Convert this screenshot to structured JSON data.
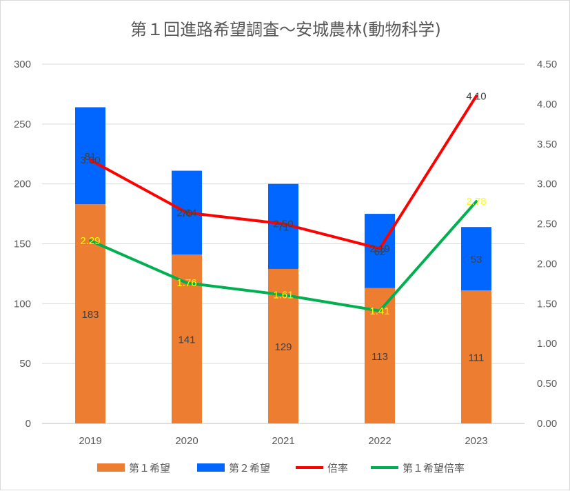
{
  "chart_data": {
    "type": "bar",
    "title": "第１回進路希望調査～安城農林(動物科学)",
    "categories": [
      "2019",
      "2020",
      "2021",
      "2022",
      "2023"
    ],
    "series": [
      {
        "name": "第１希望",
        "type": "bar",
        "axis": "left",
        "color": "#ED7D31",
        "values": [
          183,
          141,
          129,
          113,
          111
        ],
        "labels": [
          "183",
          "141",
          "129",
          "113",
          "111"
        ],
        "label_color": "#404040"
      },
      {
        "name": "第２希望",
        "type": "bar",
        "axis": "left",
        "color": "#0066FF",
        "values": [
          81,
          70,
          71,
          62,
          53
        ],
        "labels": [
          "81",
          "70",
          "71",
          "62",
          "53"
        ],
        "label_color": "#404040"
      },
      {
        "name": "倍率",
        "type": "line",
        "axis": "right",
        "color": "#FF0000",
        "values": [
          3.3,
          2.64,
          2.5,
          2.19,
          4.1
        ],
        "labels": [
          "3.30",
          "2.64",
          "2.50",
          "2.19",
          "4.10"
        ],
        "label_color": "#404040"
      },
      {
        "name": "第１希望倍率",
        "type": "line",
        "axis": "right",
        "color": "#00B050",
        "values": [
          2.29,
          1.76,
          1.61,
          1.41,
          2.78
        ],
        "labels": [
          "2.29",
          "1.76",
          "1.61",
          "1.41",
          "2.78"
        ],
        "label_color": "#FFFF00"
      }
    ],
    "y_left": {
      "min": 0,
      "max": 300,
      "ticks": [
        "0",
        "50",
        "100",
        "150",
        "200",
        "250",
        "300"
      ]
    },
    "y_right": {
      "min": 0,
      "max": 4.5,
      "ticks": [
        "0.00",
        "0.50",
        "1.00",
        "1.50",
        "2.00",
        "2.50",
        "3.00",
        "3.50",
        "4.00",
        "4.50"
      ]
    },
    "grid": true,
    "legend": "bottom"
  }
}
